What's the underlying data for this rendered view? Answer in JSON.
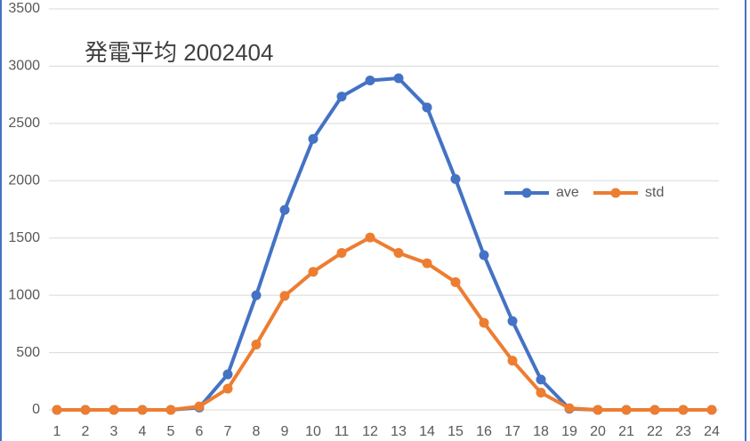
{
  "chart_data": {
    "type": "line",
    "title": "発電平均 2002404",
    "categories": [
      "1",
      "2",
      "3",
      "4",
      "5",
      "6",
      "7",
      "8",
      "9",
      "10",
      "11",
      "12",
      "13",
      "14",
      "15",
      "16",
      "17",
      "18",
      "19",
      "20",
      "21",
      "22",
      "23",
      "24"
    ],
    "series": [
      {
        "name": "ave",
        "color": "#4472c4",
        "values": [
          0,
          0,
          0,
          0,
          0,
          20,
          310,
          1000,
          1745,
          2365,
          2735,
          2875,
          2895,
          2640,
          2015,
          1350,
          775,
          265,
          10,
          0,
          0,
          0,
          0,
          0
        ]
      },
      {
        "name": "std",
        "color": "#ed7d31",
        "values": [
          0,
          0,
          0,
          0,
          0,
          30,
          185,
          570,
          995,
          1205,
          1370,
          1505,
          1370,
          1280,
          1115,
          760,
          430,
          150,
          15,
          0,
          0,
          0,
          0,
          0
        ]
      }
    ],
    "ylim": [
      0,
      3500
    ],
    "yticks": [
      0,
      500,
      1000,
      1500,
      2000,
      2500,
      3000,
      3500
    ],
    "grid": true
  }
}
